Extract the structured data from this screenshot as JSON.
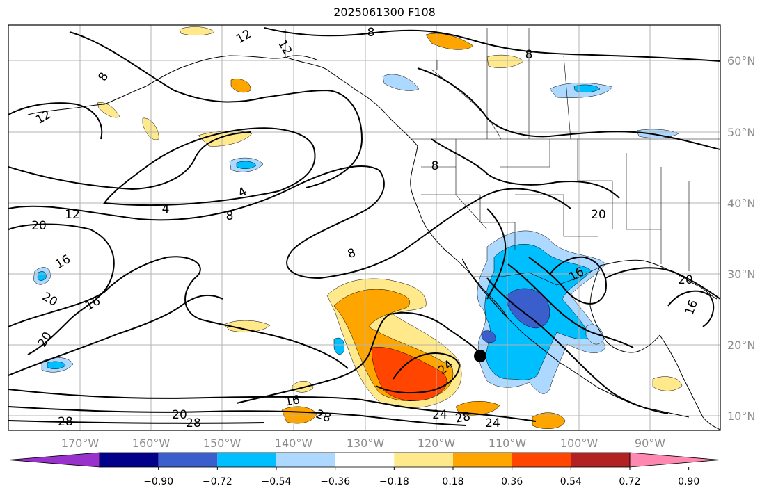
{
  "title": "2025061300 F108",
  "map": {
    "lon_labels": [
      "170°W",
      "160°W",
      "150°W",
      "140°W",
      "130°W",
      "120°W",
      "110°W",
      "100°W",
      "90°W"
    ],
    "lat_labels": [
      "60°N",
      "50°N",
      "40°N",
      "30°N",
      "20°N",
      "10°N"
    ],
    "colors": {
      "land": "#000000",
      "grid": "#b3b3b3",
      "contour": "#000000",
      "tick_label": "#8c8c8c"
    }
  },
  "contour_labels": [
    "12",
    "12",
    "8",
    "8",
    "12",
    "8",
    "4",
    "8",
    "12",
    "4",
    "20",
    "8",
    "16",
    "20",
    "8",
    "20",
    "16",
    "20",
    "24",
    "16",
    "28",
    "20",
    "28",
    "28",
    "24",
    "28",
    "24",
    "16",
    "20",
    "16"
  ],
  "colorbar": {
    "ticks": [
      "−0.90",
      "−0.72",
      "−0.54",
      "−0.36",
      "−0.18",
      "0.18",
      "0.36",
      "0.54",
      "0.72",
      "0.90"
    ],
    "colors": [
      "#9932cc",
      "#00008b",
      "#3a5fcd",
      "#00bfff",
      "#add8ff",
      "#ffffff",
      "#ffe98a",
      "#ffa500",
      "#ff4500",
      "#b22222",
      "#ff88b0"
    ]
  }
}
